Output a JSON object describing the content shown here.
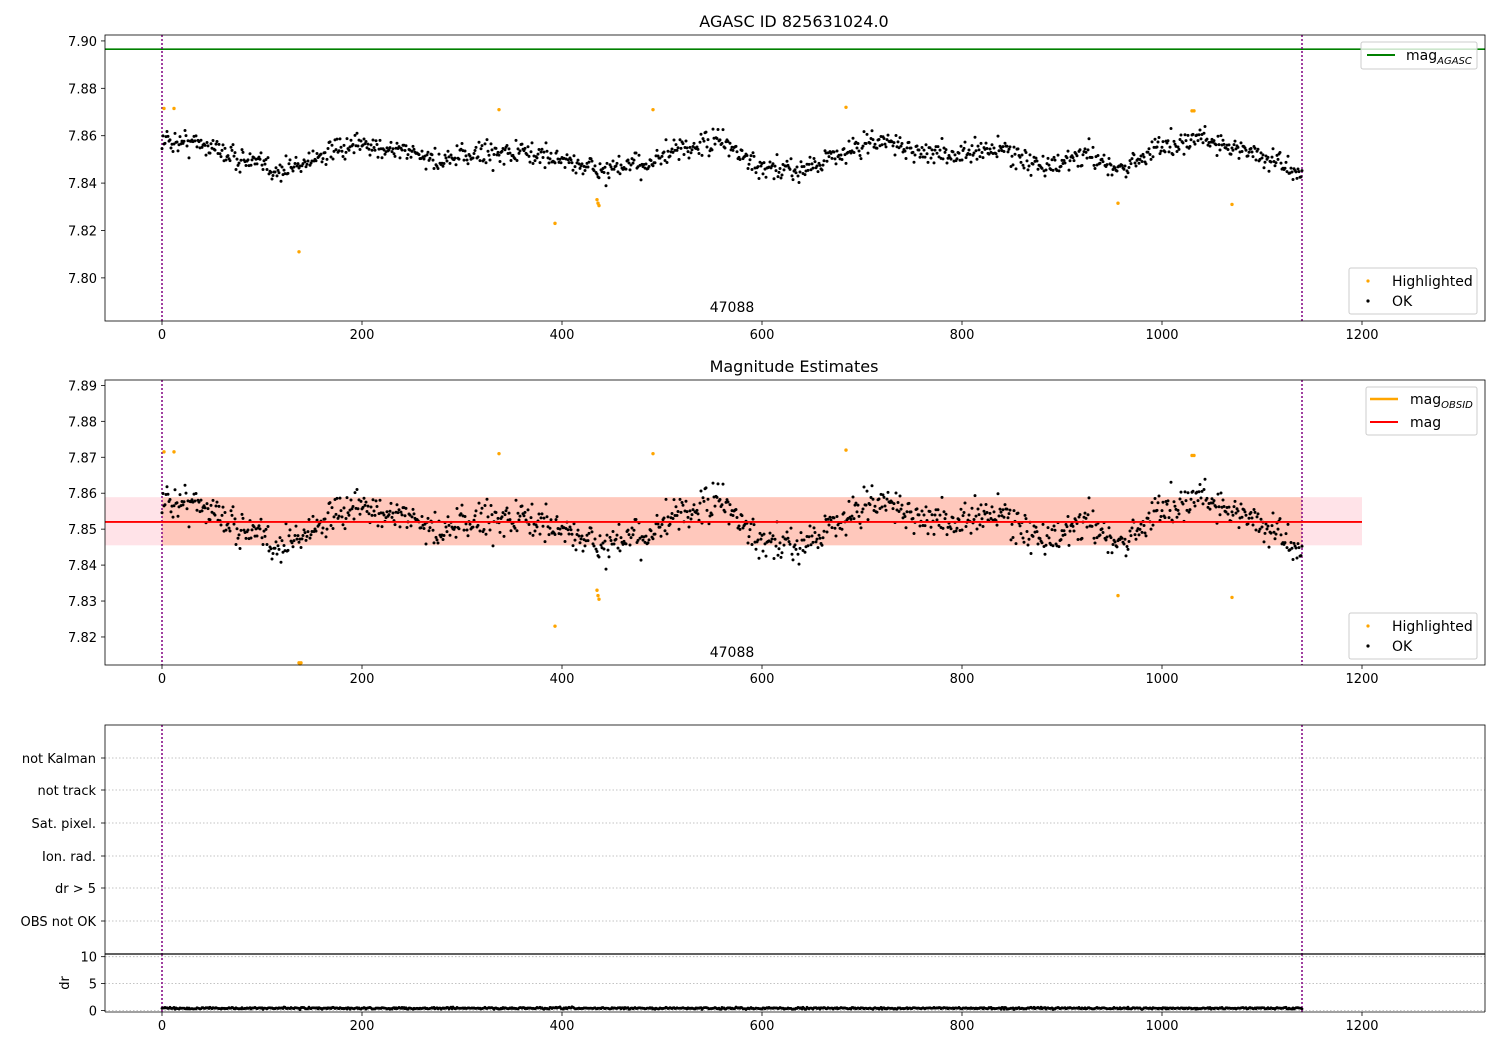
{
  "colors": {
    "ok": "#000000",
    "highlighted": "#ffa500",
    "mag_agasc": "#008000",
    "mag_obsid": "#ffa500",
    "mag": "#ff0000",
    "band_outer": "#ffc0cb",
    "band_inner": "#ffa07a",
    "vline": "#800080",
    "grid": "#b0b0b0"
  },
  "chart_data": [
    {
      "type": "scatter",
      "title": "AGASC ID 825631024.0",
      "xlim": [
        -57,
        1323
      ],
      "ylim": [
        7.7818,
        7.9025
      ],
      "xticks": [
        "0",
        "200",
        "400",
        "600",
        "800",
        "1000",
        "1200"
      ],
      "yticks": [
        "7.80",
        "7.82",
        "7.84",
        "7.86",
        "7.88",
        "7.90"
      ],
      "hline": {
        "name": "mag_AGASC",
        "base": "mag",
        "sub": "AGASC",
        "value": 7.8965
      },
      "vlines": [
        0,
        1140
      ],
      "annotation": "47088",
      "legend_lines": [
        {
          "base": "mag",
          "sub": "AGASC"
        }
      ],
      "legend_points": [
        "Highlighted",
        "OK"
      ],
      "n_points": 1141,
      "ok_trend": {
        "x": [
          0,
          40,
          80,
          120,
          160,
          200,
          240,
          280,
          320,
          360,
          400,
          440,
          480,
          520,
          560,
          600,
          640,
          680,
          720,
          760,
          800,
          840,
          880,
          920,
          960,
          1000,
          1040,
          1080,
          1120,
          1140
        ],
        "y": [
          7.858,
          7.857,
          7.85,
          7.845,
          7.852,
          7.856,
          7.854,
          7.849,
          7.853,
          7.853,
          7.85,
          7.845,
          7.848,
          7.854,
          7.858,
          7.845,
          7.846,
          7.853,
          7.858,
          7.853,
          7.852,
          7.855,
          7.846,
          7.852,
          7.846,
          7.856,
          7.859,
          7.854,
          7.848,
          7.844
        ]
      },
      "ok_scatter": 0.0045,
      "highlighted": {
        "x": [
          2,
          12,
          137,
          337,
          393,
          435,
          436,
          437,
          491,
          684,
          956,
          1030,
          1032,
          1070
        ],
        "y": [
          7.8715,
          7.8715,
          7.811,
          7.871,
          7.823,
          7.833,
          7.8315,
          7.8305,
          7.871,
          7.872,
          7.8315,
          7.8705,
          7.8705,
          7.831
        ]
      }
    },
    {
      "type": "scatter",
      "title": "Magnitude Estimates",
      "xlim": [
        -57,
        1323
      ],
      "ylim": [
        7.8122,
        7.8915
      ],
      "xticks": [
        "0",
        "200",
        "400",
        "600",
        "800",
        "1000",
        "1200"
      ],
      "yticks": [
        "7.82",
        "7.83",
        "7.84",
        "7.85",
        "7.86",
        "7.87",
        "7.88",
        "7.89"
      ],
      "mag": 7.852,
      "band_outer": [
        7.8455,
        7.8589
      ],
      "band_inner": [
        7.8455,
        7.8589
      ],
      "band_inner_x": [
        0,
        1140
      ],
      "band_outer_x": [
        -57,
        1200
      ],
      "mag_obsid_segments": [
        {
          "x": [
            0,
            1140
          ],
          "y": 7.852
        }
      ],
      "vlines": [
        0,
        1140
      ],
      "annotation": "47088",
      "legend_lines": [
        {
          "base": "mag",
          "sub": "OBSID"
        },
        {
          "base": "mag",
          "sub": ""
        }
      ],
      "legend_points": [
        "Highlighted",
        "OK"
      ],
      "highlighted": {
        "x": [
          2,
          12,
          137,
          138,
          139,
          337,
          393,
          435,
          436,
          437,
          491,
          684,
          956,
          1030,
          1032,
          1070
        ],
        "y": [
          7.8715,
          7.8715,
          7.8128,
          7.8125,
          7.8128,
          7.871,
          7.823,
          7.833,
          7.8315,
          7.8305,
          7.871,
          7.872,
          7.8315,
          7.8705,
          7.8705,
          7.831
        ]
      }
    },
    {
      "type": "scatter",
      "title": "",
      "xlim": [
        -57,
        1323
      ],
      "category_labels": [
        "not Kalman",
        "not track",
        "Sat. pixel.",
        "Ion. rad.",
        "dr > 5",
        "OBS not OK"
      ],
      "vlines": [
        0,
        1140
      ]
    },
    {
      "type": "scatter",
      "title": "",
      "ylabel": "dr",
      "xlim": [
        -57,
        1323
      ],
      "ylim": [
        -0.3,
        10.5
      ],
      "yticks": [
        "0",
        "5",
        "10"
      ],
      "xticks": [
        "0",
        "200",
        "400",
        "600",
        "800",
        "1000",
        "1200"
      ],
      "vlines": [
        0,
        1140
      ],
      "dr_mean": 0.4,
      "dr_scatter": 0.15
    }
  ]
}
